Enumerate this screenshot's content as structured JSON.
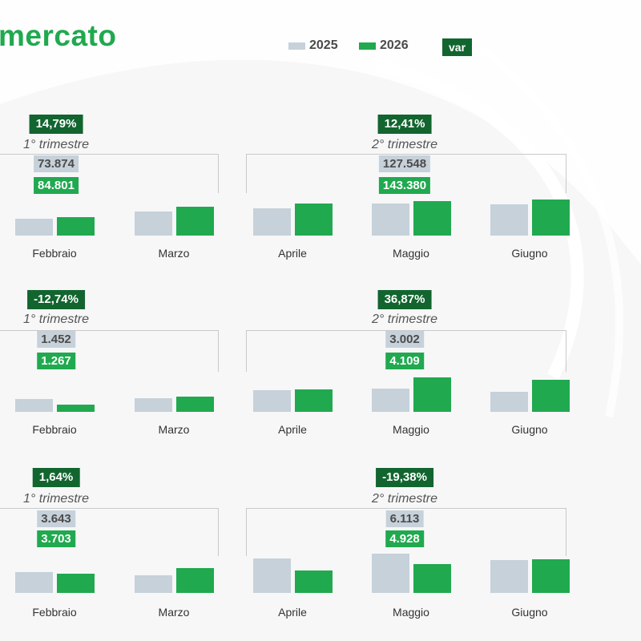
{
  "header": {
    "title": "mercato",
    "legend": [
      {
        "label": "2025",
        "color": "#c6d1da"
      },
      {
        "label": "2026",
        "color": "#20a94f"
      }
    ],
    "var_label": "var %"
  },
  "colors": {
    "y2025": "#c6d1da",
    "y2026": "#20a94f",
    "badge_dark": "#12652f"
  },
  "chart_data": [
    {
      "type": "bar",
      "categories": [
        "Febbraio",
        "Marzo",
        "Aprile",
        "Maggio",
        "Giugno"
      ],
      "series": [
        {
          "name": "2025",
          "values": [
            21,
            30,
            34,
            40,
            39
          ]
        },
        {
          "name": "2026",
          "values": [
            23,
            36,
            40,
            43,
            45
          ]
        }
      ],
      "quarters": [
        {
          "label": "1° trimestre",
          "var": "14,79%",
          "total_2025": "73.874",
          "total_2026": "84.801"
        },
        {
          "label": "2° trimestre",
          "var": "12,41%",
          "total_2025": "127.548",
          "total_2026": "143.380"
        }
      ]
    },
    {
      "type": "bar",
      "categories": [
        "Febbraio",
        "Marzo",
        "Aprile",
        "Maggio",
        "Giugno"
      ],
      "series": [
        {
          "name": "2025",
          "values": [
            16,
            17,
            27,
            29,
            25
          ]
        },
        {
          "name": "2026",
          "values": [
            9,
            19,
            28,
            43,
            40
          ]
        }
      ],
      "quarters": [
        {
          "label": "1° trimestre",
          "var": "-12,74%",
          "total_2025": "1.452",
          "total_2026": "1.267"
        },
        {
          "label": "2° trimestre",
          "var": "36,87%",
          "total_2025": "3.002",
          "total_2026": "4.109"
        }
      ]
    },
    {
      "type": "bar",
      "categories": [
        "Febbraio",
        "Marzo",
        "Aprile",
        "Maggio",
        "Giugno"
      ],
      "series": [
        {
          "name": "2025",
          "values": [
            26,
            22,
            43,
            49,
            41
          ]
        },
        {
          "name": "2026",
          "values": [
            24,
            31,
            28,
            36,
            42
          ]
        }
      ],
      "quarters": [
        {
          "label": "1° trimestre",
          "var": "1,64%",
          "total_2025": "3.643",
          "total_2026": "3.703"
        },
        {
          "label": "2° trimestre",
          "var": "-19,38%",
          "total_2025": "6.113",
          "total_2026": "4.928"
        }
      ]
    }
  ]
}
